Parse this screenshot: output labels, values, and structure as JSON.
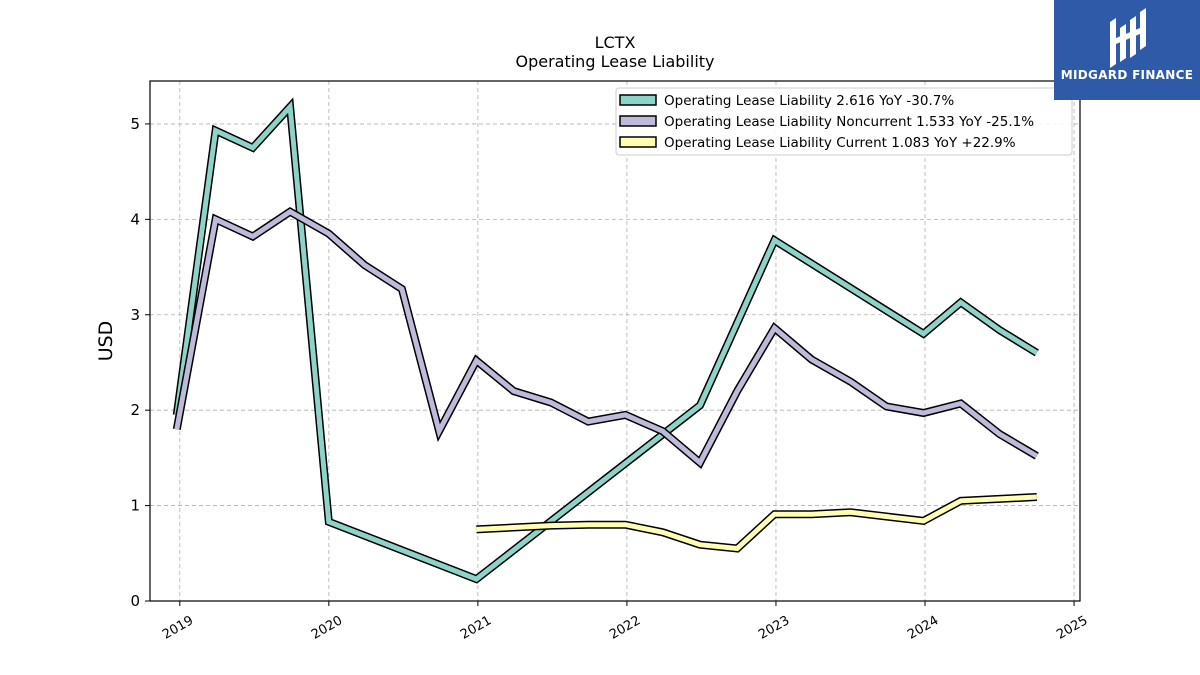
{
  "chart_data": {
    "type": "line",
    "title": "LCTX",
    "subtitle": "Operating Lease Liability",
    "ylabel": "USD",
    "xlabel": "",
    "ylim": [
      0,
      5.45
    ],
    "xlim": [
      2018.8,
      2025.04
    ],
    "yticks": [
      0,
      1,
      2,
      3,
      4,
      5
    ],
    "xticks": [
      "2019",
      "2020",
      "2021",
      "2022",
      "2023",
      "2024",
      "2025"
    ],
    "grid": true,
    "legend_position": "top-right",
    "series": [
      {
        "name": "Operating Lease Liability",
        "legend_label": "Operating Lease Liability  2.616 YoY -30.7%",
        "color": "#8dd3c7",
        "points": [
          [
            2018.98,
            1.95
          ],
          [
            2019.24,
            4.93
          ],
          [
            2019.49,
            4.75
          ],
          [
            2019.74,
            5.18
          ],
          [
            2020.0,
            0.83
          ],
          [
            2020.99,
            0.23
          ],
          [
            2022.49,
            2.05
          ],
          [
            2022.99,
            3.78
          ],
          [
            2023.99,
            2.8
          ],
          [
            2024.24,
            3.13
          ],
          [
            2024.5,
            2.84
          ],
          [
            2024.75,
            2.6
          ]
        ]
      },
      {
        "name": "Operating Lease Liability Noncurrent",
        "legend_label": "Operating Lease Liability Noncurrent  1.533 YoY -25.1%",
        "color": "#bebada",
        "points": [
          [
            2018.98,
            1.8
          ],
          [
            2019.24,
            4.0
          ],
          [
            2019.49,
            3.82
          ],
          [
            2019.74,
            4.08
          ],
          [
            2020.0,
            3.85
          ],
          [
            2020.24,
            3.52
          ],
          [
            2020.49,
            3.27
          ],
          [
            2020.74,
            1.78
          ],
          [
            2020.99,
            2.52
          ],
          [
            2021.24,
            2.2
          ],
          [
            2021.49,
            2.08
          ],
          [
            2021.74,
            1.88
          ],
          [
            2021.99,
            1.95
          ],
          [
            2022.24,
            1.78
          ],
          [
            2022.49,
            1.45
          ],
          [
            2022.74,
            2.2
          ],
          [
            2022.99,
            2.86
          ],
          [
            2023.24,
            2.53
          ],
          [
            2023.5,
            2.3
          ],
          [
            2023.74,
            2.04
          ],
          [
            2023.99,
            1.97
          ],
          [
            2024.24,
            2.07
          ],
          [
            2024.5,
            1.75
          ],
          [
            2024.75,
            1.52
          ]
        ]
      },
      {
        "name": "Operating Lease Liability Current",
        "legend_label": "Operating Lease Liability Current  1.083 YoY +22.9%",
        "color": "#ffffb3",
        "points": [
          [
            2020.99,
            0.75
          ],
          [
            2021.49,
            0.79
          ],
          [
            2021.74,
            0.8
          ],
          [
            2021.99,
            0.8
          ],
          [
            2022.24,
            0.72
          ],
          [
            2022.49,
            0.59
          ],
          [
            2022.74,
            0.55
          ],
          [
            2022.99,
            0.91
          ],
          [
            2023.24,
            0.91
          ],
          [
            2023.5,
            0.93
          ],
          [
            2023.99,
            0.84
          ],
          [
            2024.24,
            1.05
          ],
          [
            2024.5,
            1.07
          ],
          [
            2024.75,
            1.09
          ]
        ]
      }
    ]
  },
  "logo": {
    "text": "MIDGARD FINANCE",
    "background": "#2f5aa8"
  }
}
